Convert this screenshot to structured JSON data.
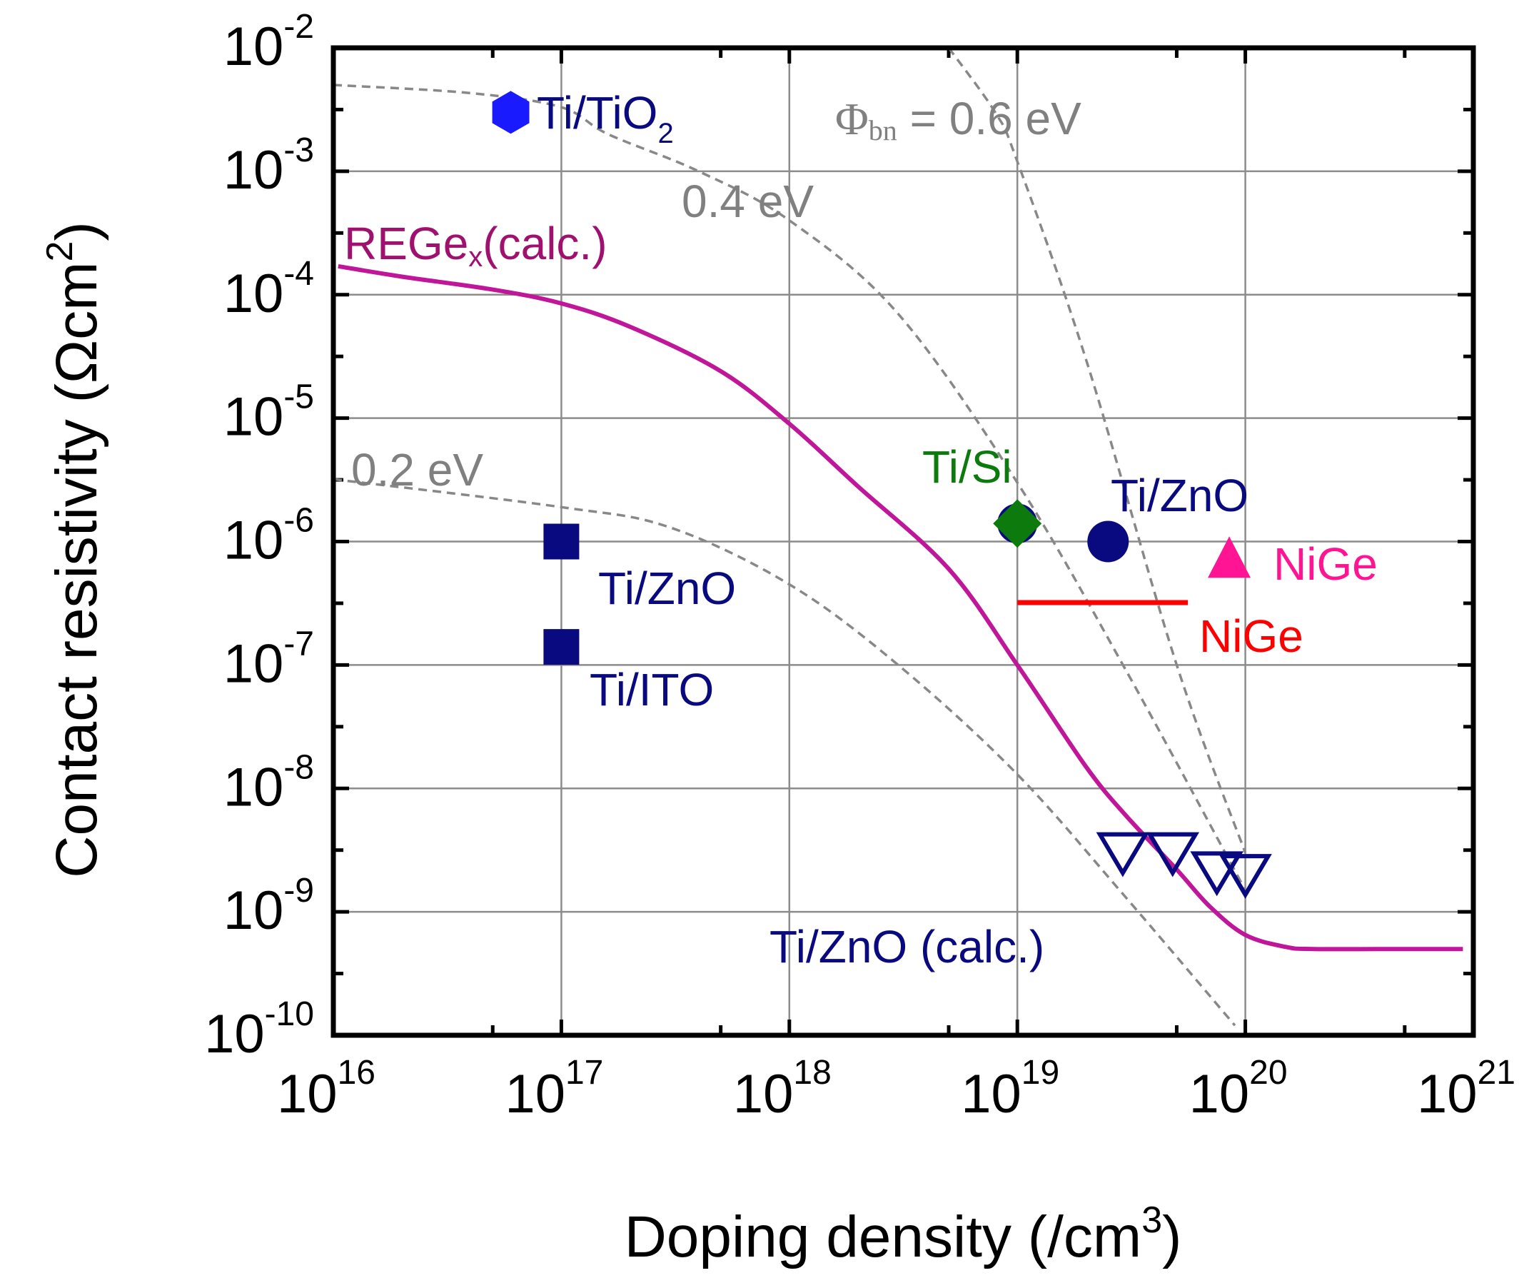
{
  "chart_data": {
    "type": "scatter",
    "xlabel": "Doping density (/cm",
    "xlabel_sup": "3",
    "xlabel_end": ")",
    "ylabel": "Contact resistivity (Ωcm",
    "ylabel_sup": "2",
    "ylabel_end": ")",
    "x_scale": "log",
    "y_scale": "log",
    "xlim": [
      1e+16,
      1e+21
    ],
    "ylim": [
      1e-10,
      0.01
    ],
    "grid": true,
    "x_ticks": [
      {
        "base": "10",
        "exp": "16",
        "value": 1e+16
      },
      {
        "base": "10",
        "exp": "17",
        "value": 1e+17
      },
      {
        "base": "10",
        "exp": "18",
        "value": 1e+18
      },
      {
        "base": "10",
        "exp": "19",
        "value": 1e+19
      },
      {
        "base": "10",
        "exp": "20",
        "value": 1e+20
      },
      {
        "base": "10",
        "exp": "21",
        "value": 1e+21
      }
    ],
    "y_ticks": [
      {
        "base": "10",
        "exp": "-2",
        "value": 0.01
      },
      {
        "base": "10",
        "exp": "-3",
        "value": 0.001
      },
      {
        "base": "10",
        "exp": "-4",
        "value": 0.0001
      },
      {
        "base": "10",
        "exp": "-5",
        "value": 1e-05
      },
      {
        "base": "10",
        "exp": "-6",
        "value": 1e-06
      },
      {
        "base": "10",
        "exp": "-7",
        "value": 1e-07
      },
      {
        "base": "10",
        "exp": "-8",
        "value": 1e-08
      },
      {
        "base": "10",
        "exp": "-9",
        "value": 1e-09
      },
      {
        "base": "10",
        "exp": "-10",
        "value": 1e-10
      }
    ],
    "curves": [
      {
        "name": "REGex (calc.)",
        "style": "solid",
        "color": "#c0169a",
        "x": [
          1.05e+16,
          2e+16,
          5e+16,
          1e+17,
          2e+17,
          5e+17,
          1e+18,
          2e+18,
          5e+18,
          1e+19,
          2e+19,
          3e+19,
          5e+19,
          7e+19,
          1e+20,
          1.5e+20,
          2e+20,
          5e+20,
          9e+20
        ],
        "y": [
          0.00017,
          0.00014,
          0.00011,
          8.5e-05,
          5.5e-05,
          2.4e-05,
          9e-06,
          2.8e-06,
          6e-07,
          1e-07,
          1.5e-08,
          6e-09,
          2.2e-09,
          1.1e-09,
          6.5e-10,
          5.2e-10,
          5e-10,
          5e-10,
          5e-10
        ]
      },
      {
        "name": "0.2 eV",
        "style": "dashed",
        "color": "#888888",
        "x": [
          1e+16,
          1e+17,
          3e+17,
          1e+18,
          3e+18,
          1e+19,
          3e+19,
          9e+19
        ],
        "y": [
          3.2e-06,
          1.9e-06,
          1.3e-06,
          4.5e-07,
          1e-07,
          1.3e-08,
          1.3e-09,
          1.2e-10
        ]
      },
      {
        "name": "0.4 eV",
        "style": "dashed",
        "color": "#888888",
        "x": [
          1e+16,
          4e+16,
          1e+17,
          1.6e+17,
          4e+17,
          1e+18,
          3e+18,
          1e+19,
          3e+19,
          1e+20
        ],
        "y": [
          0.005,
          0.0043,
          0.0033,
          0.002,
          0.001,
          0.0004,
          7e-05,
          3e-06,
          9e-08,
          1.5e-09
        ]
      },
      {
        "name": "0.6 eV",
        "style": "dashed",
        "color": "#888888",
        "x": [
          5e+18,
          8e+18,
          1e+19,
          2e+19,
          5e+19,
          1e+20
        ],
        "y": [
          0.01,
          0.003,
          0.0012,
          3e-05,
          1e-07,
          3e-09
        ]
      }
    ],
    "series": [
      {
        "name": "Ti/TiO2 (hexagon)",
        "label": "Ti/TiO",
        "label_sub": "2",
        "color": "#1a1aff",
        "points": [
          {
            "x": 6e+16,
            "y": 0.003
          }
        ]
      },
      {
        "name": "Ti/ZnO (square)",
        "label": "Ti/ZnO",
        "color": "#0a0a80",
        "points": [
          {
            "x": 1e+17,
            "y": 1e-06
          }
        ]
      },
      {
        "name": "Ti/ITO (square)",
        "label": "Ti/ITO",
        "color": "#0a0a80",
        "points": [
          {
            "x": 1e+17,
            "y": 1.4e-07
          }
        ]
      },
      {
        "name": "Ti/Si (diamond)",
        "label": "Ti/Si",
        "color": "#0d7a0d",
        "points": [
          {
            "x": 1e+19,
            "y": 1.4e-06
          }
        ]
      },
      {
        "name": "Ti/ZnO (circle)",
        "label": "Ti/ZnO",
        "color": "#0a0a80",
        "points": [
          {
            "x": 2.5e+19,
            "y": 1e-06
          }
        ]
      },
      {
        "name": "NiGe (triangle)",
        "label": "NiGe",
        "color": "#ff1493",
        "points": [
          {
            "x": 8.5e+19,
            "y": 7e-07
          }
        ]
      },
      {
        "name": "NiGe (range)",
        "label": "NiGe",
        "color": "#ff0000",
        "range": {
          "x1": 1e+19,
          "x2": 5.6e+19,
          "y": 3.2e-07
        }
      },
      {
        "name": "Ti/ZnO (calc.) (open triangles)",
        "label": "Ti/ZnO (calc.)",
        "color": "#0a0a80",
        "points": [
          {
            "x": 2.9e+19,
            "y": 3e-09
          },
          {
            "x": 4.8e+19,
            "y": 3e-09
          },
          {
            "x": 7.5e+19,
            "y": 2.1e-09
          },
          {
            "x": 1e+20,
            "y": 2e-09
          }
        ]
      }
    ],
    "annotations": {
      "regex": {
        "main": "REGe",
        "sub": "x",
        "end": "(calc.)",
        "color": "#a0106e"
      },
      "phi": {
        "symbol": "Φ",
        "sub": "bn",
        "text": " = 0.6 eV",
        "color": "#808080"
      },
      "b04": {
        "text": "0.4 eV",
        "color": "#808080"
      },
      "b02": {
        "text": "0.2 eV",
        "color": "#808080"
      }
    }
  }
}
